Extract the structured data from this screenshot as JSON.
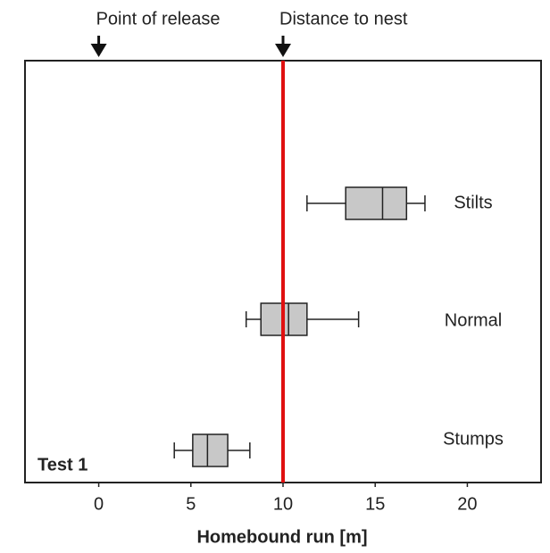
{
  "chart_data": {
    "type": "box",
    "xlabel": "Homebound run [m]",
    "panel_label": "Test 1",
    "categories": [
      "Stilts",
      "Normal",
      "Stumps"
    ],
    "boxes": [
      {
        "whislo": 11.3,
        "q1": 13.4,
        "med": 15.4,
        "q3": 16.7,
        "whishi": 17.7
      },
      {
        "whislo": 8.0,
        "q1": 8.8,
        "med": 10.3,
        "q3": 11.3,
        "whishi": 14.1
      },
      {
        "whislo": 4.1,
        "q1": 5.1,
        "med": 5.9,
        "q3": 7.0,
        "whishi": 8.2
      }
    ],
    "box_color": "#c8c8c8",
    "reference_line": {
      "value": 10,
      "color": "#e01010"
    },
    "annotations": [
      {
        "text": "Point of release",
        "x": 0
      },
      {
        "text": "Distance to nest",
        "x": 10
      }
    ],
    "xlim": [
      -4,
      24
    ],
    "xticks": [
      0,
      5,
      10,
      15,
      20
    ]
  }
}
